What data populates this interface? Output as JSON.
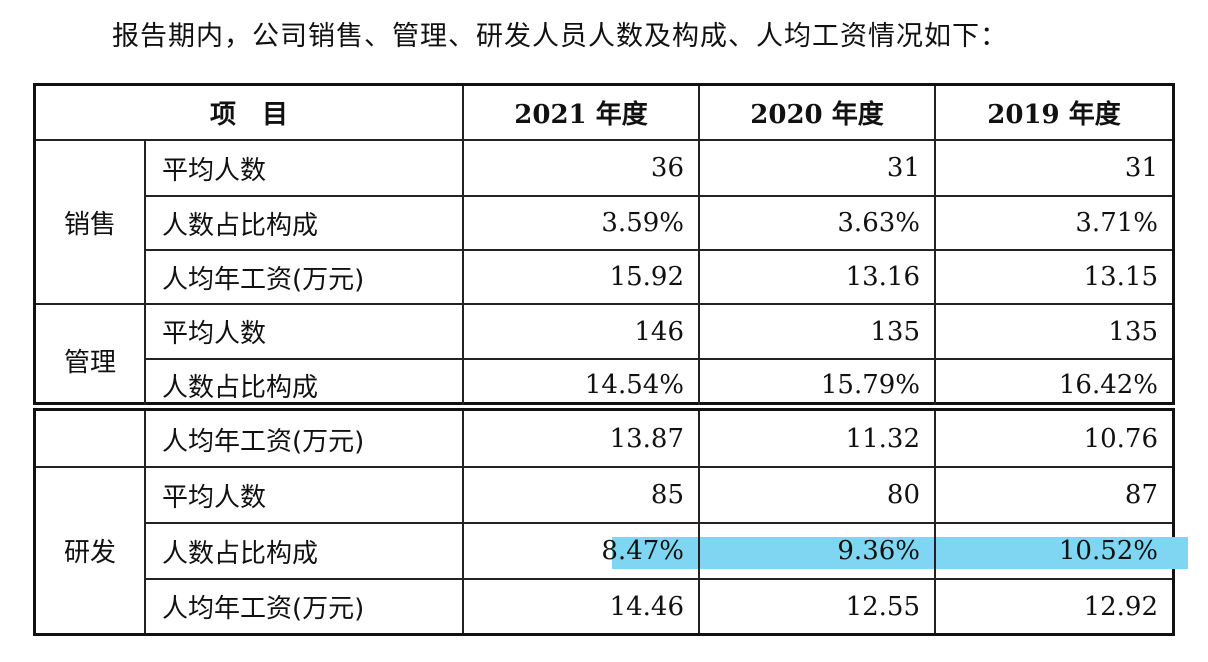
{
  "intro": "报告期内，公司销售、管理、研发人员人数及构成、人均工资情况如下：",
  "header": {
    "item": "项　目",
    "y2021": "2021 年度",
    "y2020": "2020 年度",
    "y2019": "2019 年度"
  },
  "groups": {
    "sales": "销售",
    "mgmt": "管理",
    "rd": "研发"
  },
  "rows": [
    {
      "label": "平均人数",
      "v2021": "36",
      "v2020": "31",
      "v2019": "31"
    },
    {
      "label": "人数占比构成",
      "v2021": "3.59%",
      "v2020": "3.63%",
      "v2019": "3.71%"
    },
    {
      "label": "人均年工资(万元)",
      "v2021": "15.92",
      "v2020": "13.16",
      "v2019": "13.15"
    },
    {
      "label": "平均人数",
      "v2021": "146",
      "v2020": "135",
      "v2019": "135"
    },
    {
      "label": "人数占比构成",
      "v2021": "14.54%",
      "v2020": "15.79%",
      "v2019": "16.42%"
    },
    {
      "label": "人均年工资(万元)",
      "v2021": "13.87",
      "v2020": "11.32",
      "v2019": "10.76"
    },
    {
      "label": "平均人数",
      "v2021": "85",
      "v2020": "80",
      "v2019": "87"
    },
    {
      "label": "人数占比构成",
      "v2021": "8.47%",
      "v2020": "9.36%",
      "v2019": "10.52%"
    },
    {
      "label": "人均年工资(万元)",
      "v2021": "14.46",
      "v2020": "12.55",
      "v2019": "12.92"
    }
  ],
  "highlight_color": "#7fd6f3"
}
